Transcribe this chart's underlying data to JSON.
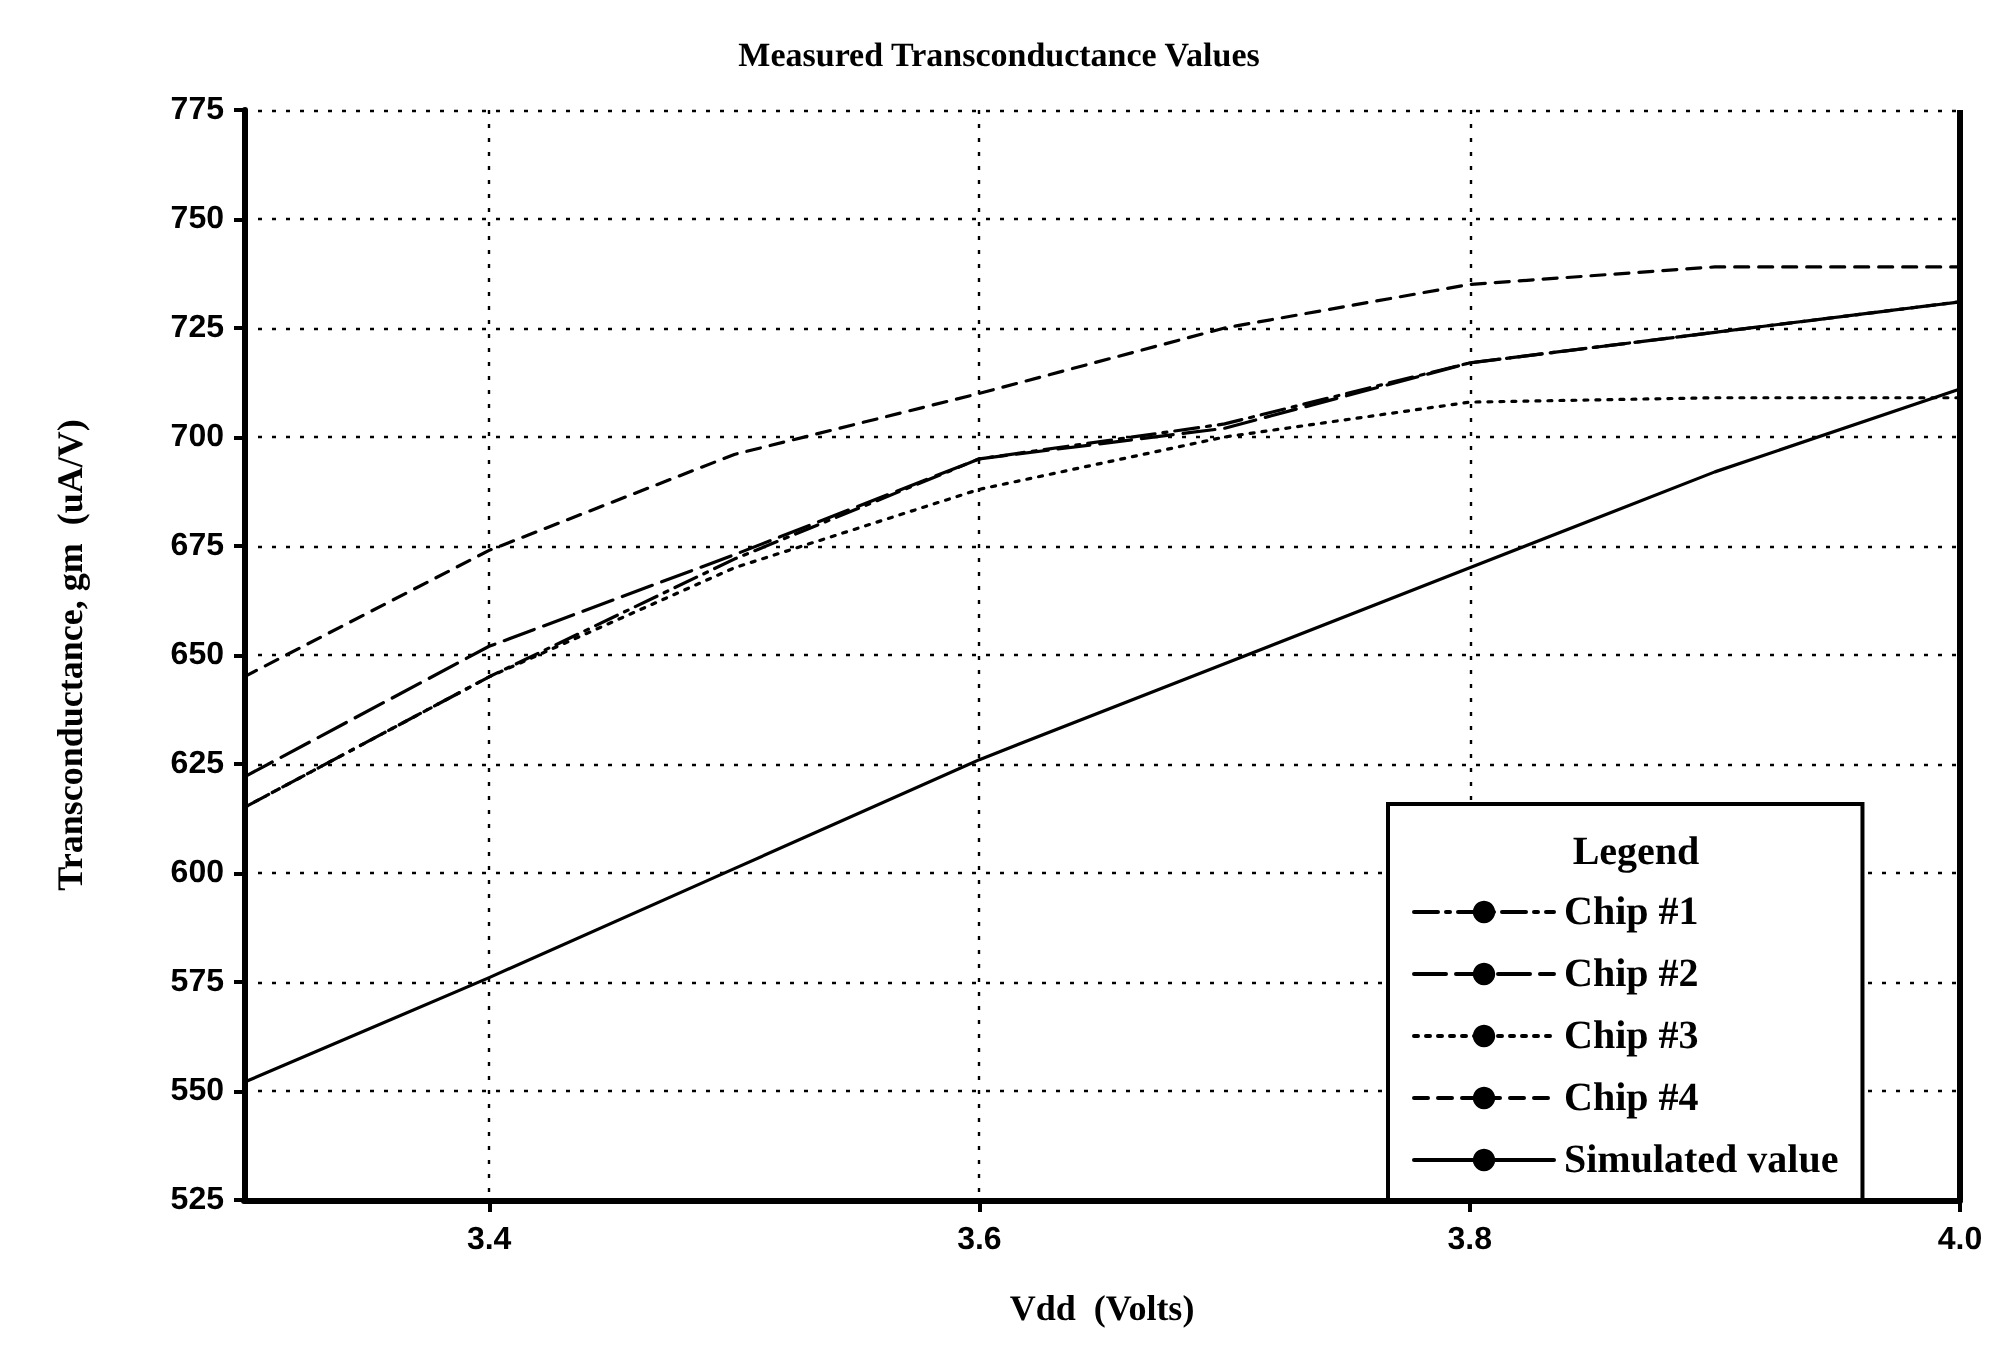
{
  "chart_data": {
    "type": "line",
    "title": "Measured Transconductance Values",
    "xlabel": "Vdd  (Volts)",
    "ylabel": "Transconductance, gm  (uA/V)",
    "legend_title": "Legend",
    "x": [
      3.3,
      3.4,
      3.5,
      3.6,
      3.7,
      3.8,
      3.9,
      4.0
    ],
    "series": [
      {
        "name": "Chip #1",
        "color": "#000000",
        "line_style": "dashdot",
        "values": [
          615,
          645,
          672,
          695,
          703,
          717,
          724,
          731
        ]
      },
      {
        "name": "Chip #2",
        "color": "#000000",
        "line_style": "longdash",
        "values": [
          622,
          652,
          673,
          695,
          702,
          717,
          724,
          731
        ]
      },
      {
        "name": "Chip #3",
        "color": "#000000",
        "line_style": "dotted",
        "values": [
          615,
          645,
          670,
          688,
          700,
          708,
          709,
          709
        ]
      },
      {
        "name": "Chip #4",
        "color": "#000000",
        "line_style": "dashed",
        "values": [
          645,
          674,
          696,
          710,
          725,
          735,
          739,
          739
        ]
      },
      {
        "name": "Simulated value",
        "color": "#000000",
        "line_style": "solid",
        "values": [
          552,
          576,
          601,
          626,
          648,
          670,
          692,
          711
        ]
      }
    ],
    "xlim": [
      3.3,
      4.0
    ],
    "xticks": [
      3.4,
      3.6,
      3.8,
      {
        "value": 4.0,
        "label": "4.0"
      }
    ],
    "ylim": [
      525,
      775
    ],
    "yticks": [
      525,
      550,
      575,
      600,
      625,
      650,
      675,
      700,
      725,
      750,
      775
    ],
    "grid": true,
    "legend": "bottom right",
    "marker": "none"
  }
}
